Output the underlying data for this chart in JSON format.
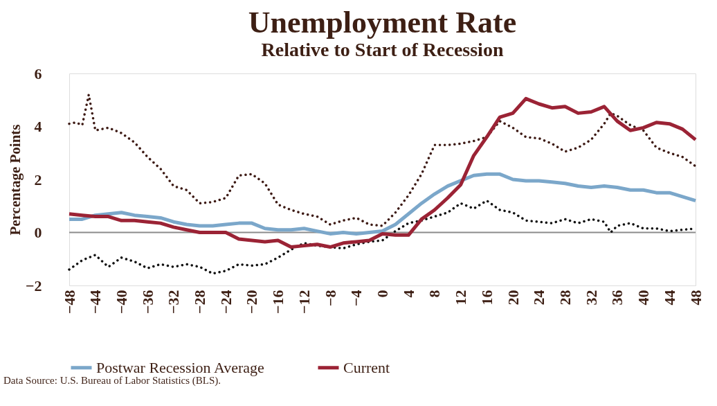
{
  "chart_data": {
    "type": "line",
    "title": "Unemployment Rate",
    "subtitle": "Relative to Start of Recession",
    "ylabel": "Percentage Points",
    "x": [
      -48,
      -46,
      -44,
      -42,
      -40,
      -38,
      -36,
      -34,
      -32,
      -30,
      -28,
      -26,
      -24,
      -22,
      -20,
      -18,
      -16,
      -14,
      -12,
      -10,
      -8,
      -6,
      -4,
      -2,
      0,
      2,
      4,
      6,
      8,
      10,
      12,
      14,
      16,
      18,
      20,
      22,
      24,
      26,
      28,
      30,
      32,
      34,
      36,
      38,
      40,
      42,
      44,
      46,
      48
    ],
    "series": [
      {
        "name": "Postwar Recession  Average",
        "color": "#7ba7ca",
        "line_style": "solid",
        "values": [
          0.5,
          0.5,
          0.65,
          0.7,
          0.75,
          0.65,
          0.6,
          0.55,
          0.4,
          0.3,
          0.25,
          0.25,
          0.3,
          0.35,
          0.35,
          0.15,
          0.1,
          0.1,
          0.15,
          0.05,
          -0.05,
          0.0,
          -0.05,
          0.0,
          0.05,
          0.3,
          0.7,
          1.1,
          1.45,
          1.75,
          1.95,
          2.15,
          2.2,
          2.2,
          2.0,
          1.95,
          1.95,
          1.9,
          1.85,
          1.75,
          1.7,
          1.75,
          1.7,
          1.6,
          1.6,
          1.5,
          1.5,
          1.35,
          1.2
        ]
      },
      {
        "name": "Current",
        "color": "#9b2335",
        "line_style": "solid",
        "values": [
          0.7,
          0.65,
          0.6,
          0.6,
          0.45,
          0.45,
          0.4,
          0.35,
          0.2,
          0.1,
          0.0,
          0.0,
          0.0,
          -0.25,
          -0.3,
          -0.35,
          -0.3,
          -0.55,
          -0.5,
          -0.45,
          -0.55,
          -0.4,
          -0.35,
          -0.3,
          -0.05,
          -0.1,
          -0.1,
          0.5,
          0.85,
          1.3,
          1.8,
          2.9,
          3.6,
          4.35,
          4.5,
          5.05,
          4.85,
          4.7,
          4.75,
          4.5,
          4.55,
          4.75,
          4.2,
          3.85,
          3.95,
          4.15,
          4.1,
          3.9,
          3.5
        ]
      },
      {
        "color": "#3d1a14",
        "line_style": "dotted",
        "x": [
          -48,
          -47,
          -46,
          -45,
          -44,
          -42,
          -40,
          -38,
          -36,
          -34,
          -32,
          -30,
          -28,
          -26,
          -24,
          -22,
          -20,
          -18,
          -16,
          -14,
          -12,
          -10,
          -8,
          -6,
          -4,
          -2,
          0,
          2,
          4,
          6,
          8,
          10,
          12,
          14,
          16,
          18,
          20,
          22,
          24,
          26,
          28,
          30,
          32,
          34,
          35,
          36,
          38,
          40,
          42,
          44,
          46,
          48
        ],
        "values": [
          4.1,
          4.15,
          4.05,
          5.2,
          3.85,
          3.95,
          3.75,
          3.4,
          2.85,
          2.4,
          1.75,
          1.6,
          1.1,
          1.15,
          1.3,
          2.15,
          2.2,
          1.85,
          1.05,
          0.85,
          0.7,
          0.6,
          0.3,
          0.45,
          0.55,
          0.3,
          0.25,
          0.75,
          1.4,
          2.2,
          3.3,
          3.3,
          3.35,
          3.45,
          3.6,
          4.2,
          3.95,
          3.6,
          3.55,
          3.35,
          3.05,
          3.2,
          3.5,
          4.1,
          4.5,
          4.4,
          4.05,
          3.85,
          3.2,
          3.0,
          2.85,
          2.5
        ]
      },
      {
        "color": "#111111",
        "line_style": "dotted",
        "x": [
          -48,
          -46,
          -44,
          -42,
          -40,
          -38,
          -36,
          -34,
          -32,
          -30,
          -28,
          -26,
          -24,
          -22,
          -20,
          -18,
          -16,
          -14,
          -12,
          -10,
          -8,
          -6,
          -4,
          -2,
          0,
          2,
          4,
          6,
          8,
          10,
          12,
          14,
          16,
          18,
          20,
          22,
          24,
          26,
          28,
          30,
          32,
          34,
          35,
          36,
          38,
          40,
          42,
          44,
          46,
          48
        ],
        "values": [
          -1.4,
          -1.05,
          -0.85,
          -1.3,
          -0.95,
          -1.1,
          -1.35,
          -1.2,
          -1.3,
          -1.2,
          -1.3,
          -1.55,
          -1.45,
          -1.2,
          -1.25,
          -1.2,
          -0.95,
          -0.65,
          -0.4,
          -0.5,
          -0.55,
          -0.6,
          -0.45,
          -0.35,
          -0.3,
          0.05,
          0.35,
          0.45,
          0.6,
          0.75,
          1.1,
          0.9,
          1.2,
          0.85,
          0.75,
          0.45,
          0.4,
          0.35,
          0.5,
          0.35,
          0.5,
          0.4,
          0.0,
          0.25,
          0.35,
          0.15,
          0.15,
          0.05,
          0.1,
          0.15
        ]
      }
    ],
    "xlim": [
      -48,
      48
    ],
    "xticks": [
      -48,
      -44,
      -40,
      -36,
      -32,
      -28,
      -24,
      -20,
      -16,
      -12,
      -8,
      -4,
      0,
      4,
      8,
      12,
      16,
      20,
      24,
      28,
      32,
      36,
      40,
      44,
      48
    ],
    "ylim": [
      -2,
      6
    ],
    "yticks": [
      -2,
      0,
      2,
      4,
      6
    ],
    "ref_lines": [
      {
        "axis": "y",
        "value": 0,
        "color": "#8c8c8c"
      }
    ],
    "grid": false,
    "legend": "bottom",
    "marker": "none",
    "annotations": [
      "Data Source: U.S. Bureau of Labor Statistics (BLS)."
    ]
  }
}
